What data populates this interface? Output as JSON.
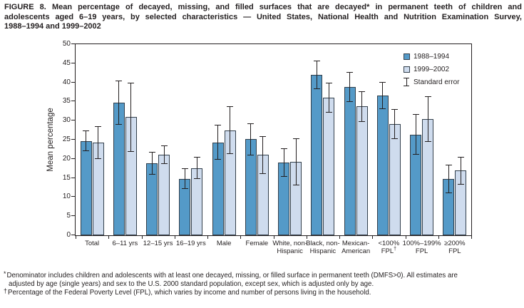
{
  "figure": {
    "title_lines": [
      "FIGURE 8. Mean percentage of decayed, missing, and filled surfaces that are decayed* in permanent teeth of children and",
      "adolescents aged 6–19 years, by selected characteristics — United States, National Health and Nutrition Examination Survey,",
      "1988–1994 and 1999–2002"
    ]
  },
  "chart_data": {
    "type": "bar",
    "title": "",
    "xlabel": "",
    "ylabel": "Mean percentage",
    "ylim": [
      0,
      50
    ],
    "ytick_step": 5,
    "grid": false,
    "legend_position": "top-right-inside",
    "error_bar_label": "Standard error",
    "categories": [
      [
        "Total"
      ],
      [
        "6–11 yrs"
      ],
      [
        "12–15 yrs"
      ],
      [
        "16–19 yrs"
      ],
      [
        "Male"
      ],
      [
        "Female"
      ],
      [
        "White, non-",
        "Hispanic"
      ],
      [
        "Black, non-",
        "Hispanic"
      ],
      [
        "Mexican-",
        "American"
      ],
      [
        "<100%",
        "FPL†"
      ],
      [
        "100%–199%",
        "FPL"
      ],
      [
        "≥200%",
        "FPL"
      ]
    ],
    "series": [
      {
        "name": "1988–1994",
        "color": "#549ac8",
        "values": [
          24.7,
          34.7,
          18.9,
          14.8,
          24.3,
          25.1,
          19.0,
          42.0,
          38.8,
          36.6,
          26.4,
          14.7
        ],
        "standard_errors": [
          2.7,
          5.7,
          3.0,
          2.7,
          4.6,
          4.2,
          3.7,
          3.8,
          3.9,
          3.6,
          5.4,
          3.7
        ]
      },
      {
        "name": "1999–2002",
        "color": "#cfdcee",
        "values": [
          24.3,
          30.9,
          21.1,
          17.6,
          27.5,
          21.0,
          19.2,
          36.0,
          33.7,
          29.1,
          30.4,
          16.9
        ],
        "standard_errors": [
          4.3,
          9.0,
          2.5,
          2.9,
          6.3,
          5.0,
          6.1,
          3.9,
          4.0,
          3.9,
          6.0,
          3.7
        ]
      }
    ]
  },
  "footnotes": [
    {
      "marker": "*",
      "lines": [
        "Denominator includes children and adolescents with at least one decayed, missing, or filled surface in permanent teeth (DMFS>0). All estimates are",
        "adjusted by age (single years) and sex to the U.S. 2000 standard population, except sex, which is adjusted only by age."
      ]
    },
    {
      "marker": "†",
      "lines": [
        "Percentage of the Federal Poverty Level (FPL), which varies by income and number of persons living in the household."
      ]
    }
  ],
  "colors": {
    "bar_1988_1994": "#549ac8",
    "bar_1999_2002": "#cfdcee",
    "bar_border": "#323f4b",
    "error_bar": "#231f20",
    "axis": "#231f20",
    "text": "#231f20"
  }
}
